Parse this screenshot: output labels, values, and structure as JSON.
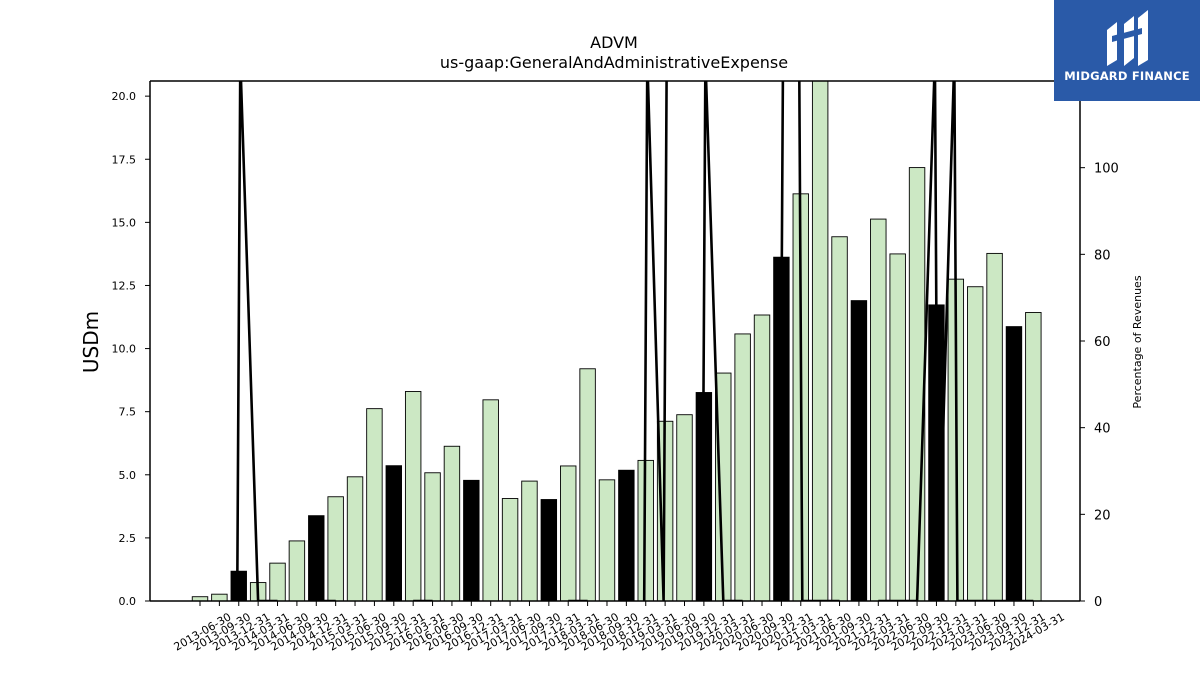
{
  "brand": {
    "name": "MIDGARD FINANCE",
    "bg_color": "#2a5aa8"
  },
  "chart_data": {
    "type": "bar",
    "title": "ADVM",
    "subtitle": "us-gaap:GeneralAndAdministrativeExpense",
    "ylabel": "USDm",
    "y2label": "Percentage of Revenues",
    "ylim": [
      0,
      20.6
    ],
    "y2lim": [
      0,
      120
    ],
    "yticks": [
      "0.0",
      "2.5",
      "5.0",
      "7.5",
      "10.0",
      "12.5",
      "15.0",
      "17.5",
      "20.0"
    ],
    "y2ticks": [
      "0",
      "20",
      "40",
      "60",
      "80",
      "100"
    ],
    "colors": {
      "quarter": "#cce8c4",
      "annual": "#000000",
      "edge": "#000000",
      "line": "#000000"
    },
    "categories": [
      "2013-06-30",
      "2013-09-30",
      "2013-12-31",
      "2014-03-31",
      "2014-06-30",
      "2014-09-30",
      "2014-12-31",
      "2015-03-31",
      "2015-06-30",
      "2015-09-30",
      "2015-12-31",
      "2016-03-31",
      "2016-06-30",
      "2016-09-30",
      "2016-12-31",
      "2017-03-31",
      "2017-06-30",
      "2017-09-30",
      "2017-12-31",
      "2018-03-31",
      "2018-06-30",
      "2018-09-30",
      "2018-12-31",
      "2019-03-31",
      "2019-06-30",
      "2019-09-30",
      "2019-12-31",
      "2020-03-31",
      "2020-06-30",
      "2020-09-30",
      "2020-12-31",
      "2021-03-31",
      "2021-06-30",
      "2021-09-30",
      "2021-12-31",
      "2022-03-31",
      "2022-06-30",
      "2022-09-30",
      "2022-12-31",
      "2023-03-31",
      "2023-06-30",
      "2023-09-30",
      "2023-12-31",
      "2024-03-31"
    ],
    "series": [
      {
        "values": [
          0.17,
          0.27,
          1.18,
          0.73,
          1.5,
          2.38,
          3.38,
          4.13,
          4.92,
          7.62,
          5.36,
          8.3,
          5.08,
          6.13,
          4.78,
          7.97,
          4.06,
          4.75,
          4.02,
          5.35,
          9.2,
          4.8,
          5.18,
          5.57,
          7.12,
          7.38,
          8.26,
          9.03,
          10.58,
          11.33,
          13.62,
          16.13,
          20.6,
          14.43,
          11.9,
          15.13,
          13.75,
          17.17,
          11.73,
          12.75,
          12.45,
          13.77,
          10.87,
          11.43
        ],
        "annual": [
          false,
          false,
          true,
          false,
          false,
          false,
          true,
          false,
          false,
          false,
          true,
          false,
          false,
          false,
          true,
          false,
          false,
          false,
          true,
          false,
          false,
          false,
          true,
          false,
          false,
          false,
          true,
          false,
          false,
          false,
          true,
          false,
          false,
          false,
          true,
          false,
          false,
          false,
          true,
          false,
          false,
          false,
          true,
          false
        ]
      },
      {
        "values": [
          null,
          null,
          [
            0,
            125
          ],
          0,
          0,
          null,
          0,
          0,
          null,
          null,
          null,
          0,
          0,
          null,
          null,
          null,
          0,
          null,
          null,
          0,
          0,
          null,
          null,
          [
            0,
            125
          ],
          [
            0,
            125
          ],
          null,
          [
            0,
            125
          ],
          0,
          0,
          null,
          [
            0,
            125
          ],
          [
            125,
            0
          ],
          0,
          0,
          null,
          0,
          0,
          0,
          [
            125,
            0
          ],
          [
            125,
            0
          ],
          0,
          0,
          0,
          0
        ]
      }
    ]
  }
}
